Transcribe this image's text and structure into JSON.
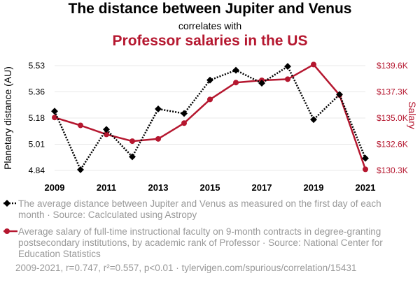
{
  "header": {
    "title": "The distance between Jupiter and Venus",
    "subtitle": "correlates with",
    "title2": "Professor salaries in the US"
  },
  "legend": {
    "series1": "The average distance between Jupiter and Venus as measured on the first day of each month · Source: Caclculated using Astropy",
    "series2": "Average salary of full-time instructional faculty on 9-month contracts in degree-granting postsecondary institutions, by academic rank of Professor · Source: National Center for Education Statistics"
  },
  "footer": {
    "text": "2009-2021, r=0.747, r²=0.557, p<0.01 · tylervigen.com/spurious/correlation/15431"
  },
  "colors": {
    "series1": "#000000",
    "series2": "#b5172f",
    "grid": "#e8e8e8"
  },
  "chart_data": {
    "type": "line",
    "x": [
      2009,
      2010,
      2011,
      2012,
      2013,
      2014,
      2015,
      2016,
      2017,
      2018,
      2019,
      2020,
      2021
    ],
    "xticks": [
      "2009",
      "2011",
      "2013",
      "2015",
      "2017",
      "2019",
      "2021"
    ],
    "xlim": [
      2009,
      2021
    ],
    "series": [
      {
        "name": "Planetary distance",
        "axis": "left",
        "ylabel": "Planetary distance (AU)",
        "values": [
          5.23,
          4.845,
          5.11,
          4.93,
          5.245,
          5.215,
          5.435,
          5.5,
          5.415,
          5.525,
          5.175,
          5.34,
          4.92
        ],
        "ylim": [
          4.84,
          5.53
        ],
        "yticks": [
          "4.84",
          "5.01",
          "5.18",
          "5.36",
          "5.53"
        ]
      },
      {
        "name": "Salary",
        "axis": "right",
        "ylabel": "Salary",
        "values": [
          135000,
          134300,
          133500,
          132900,
          133100,
          134500,
          136600,
          138100,
          138300,
          138400,
          139700,
          137000,
          130400
        ],
        "ylim": [
          130300,
          139600
        ],
        "yticks": [
          "$130.3K",
          "$132.6K",
          "$135.0K",
          "$137.3K",
          "$139.6K"
        ]
      }
    ]
  }
}
